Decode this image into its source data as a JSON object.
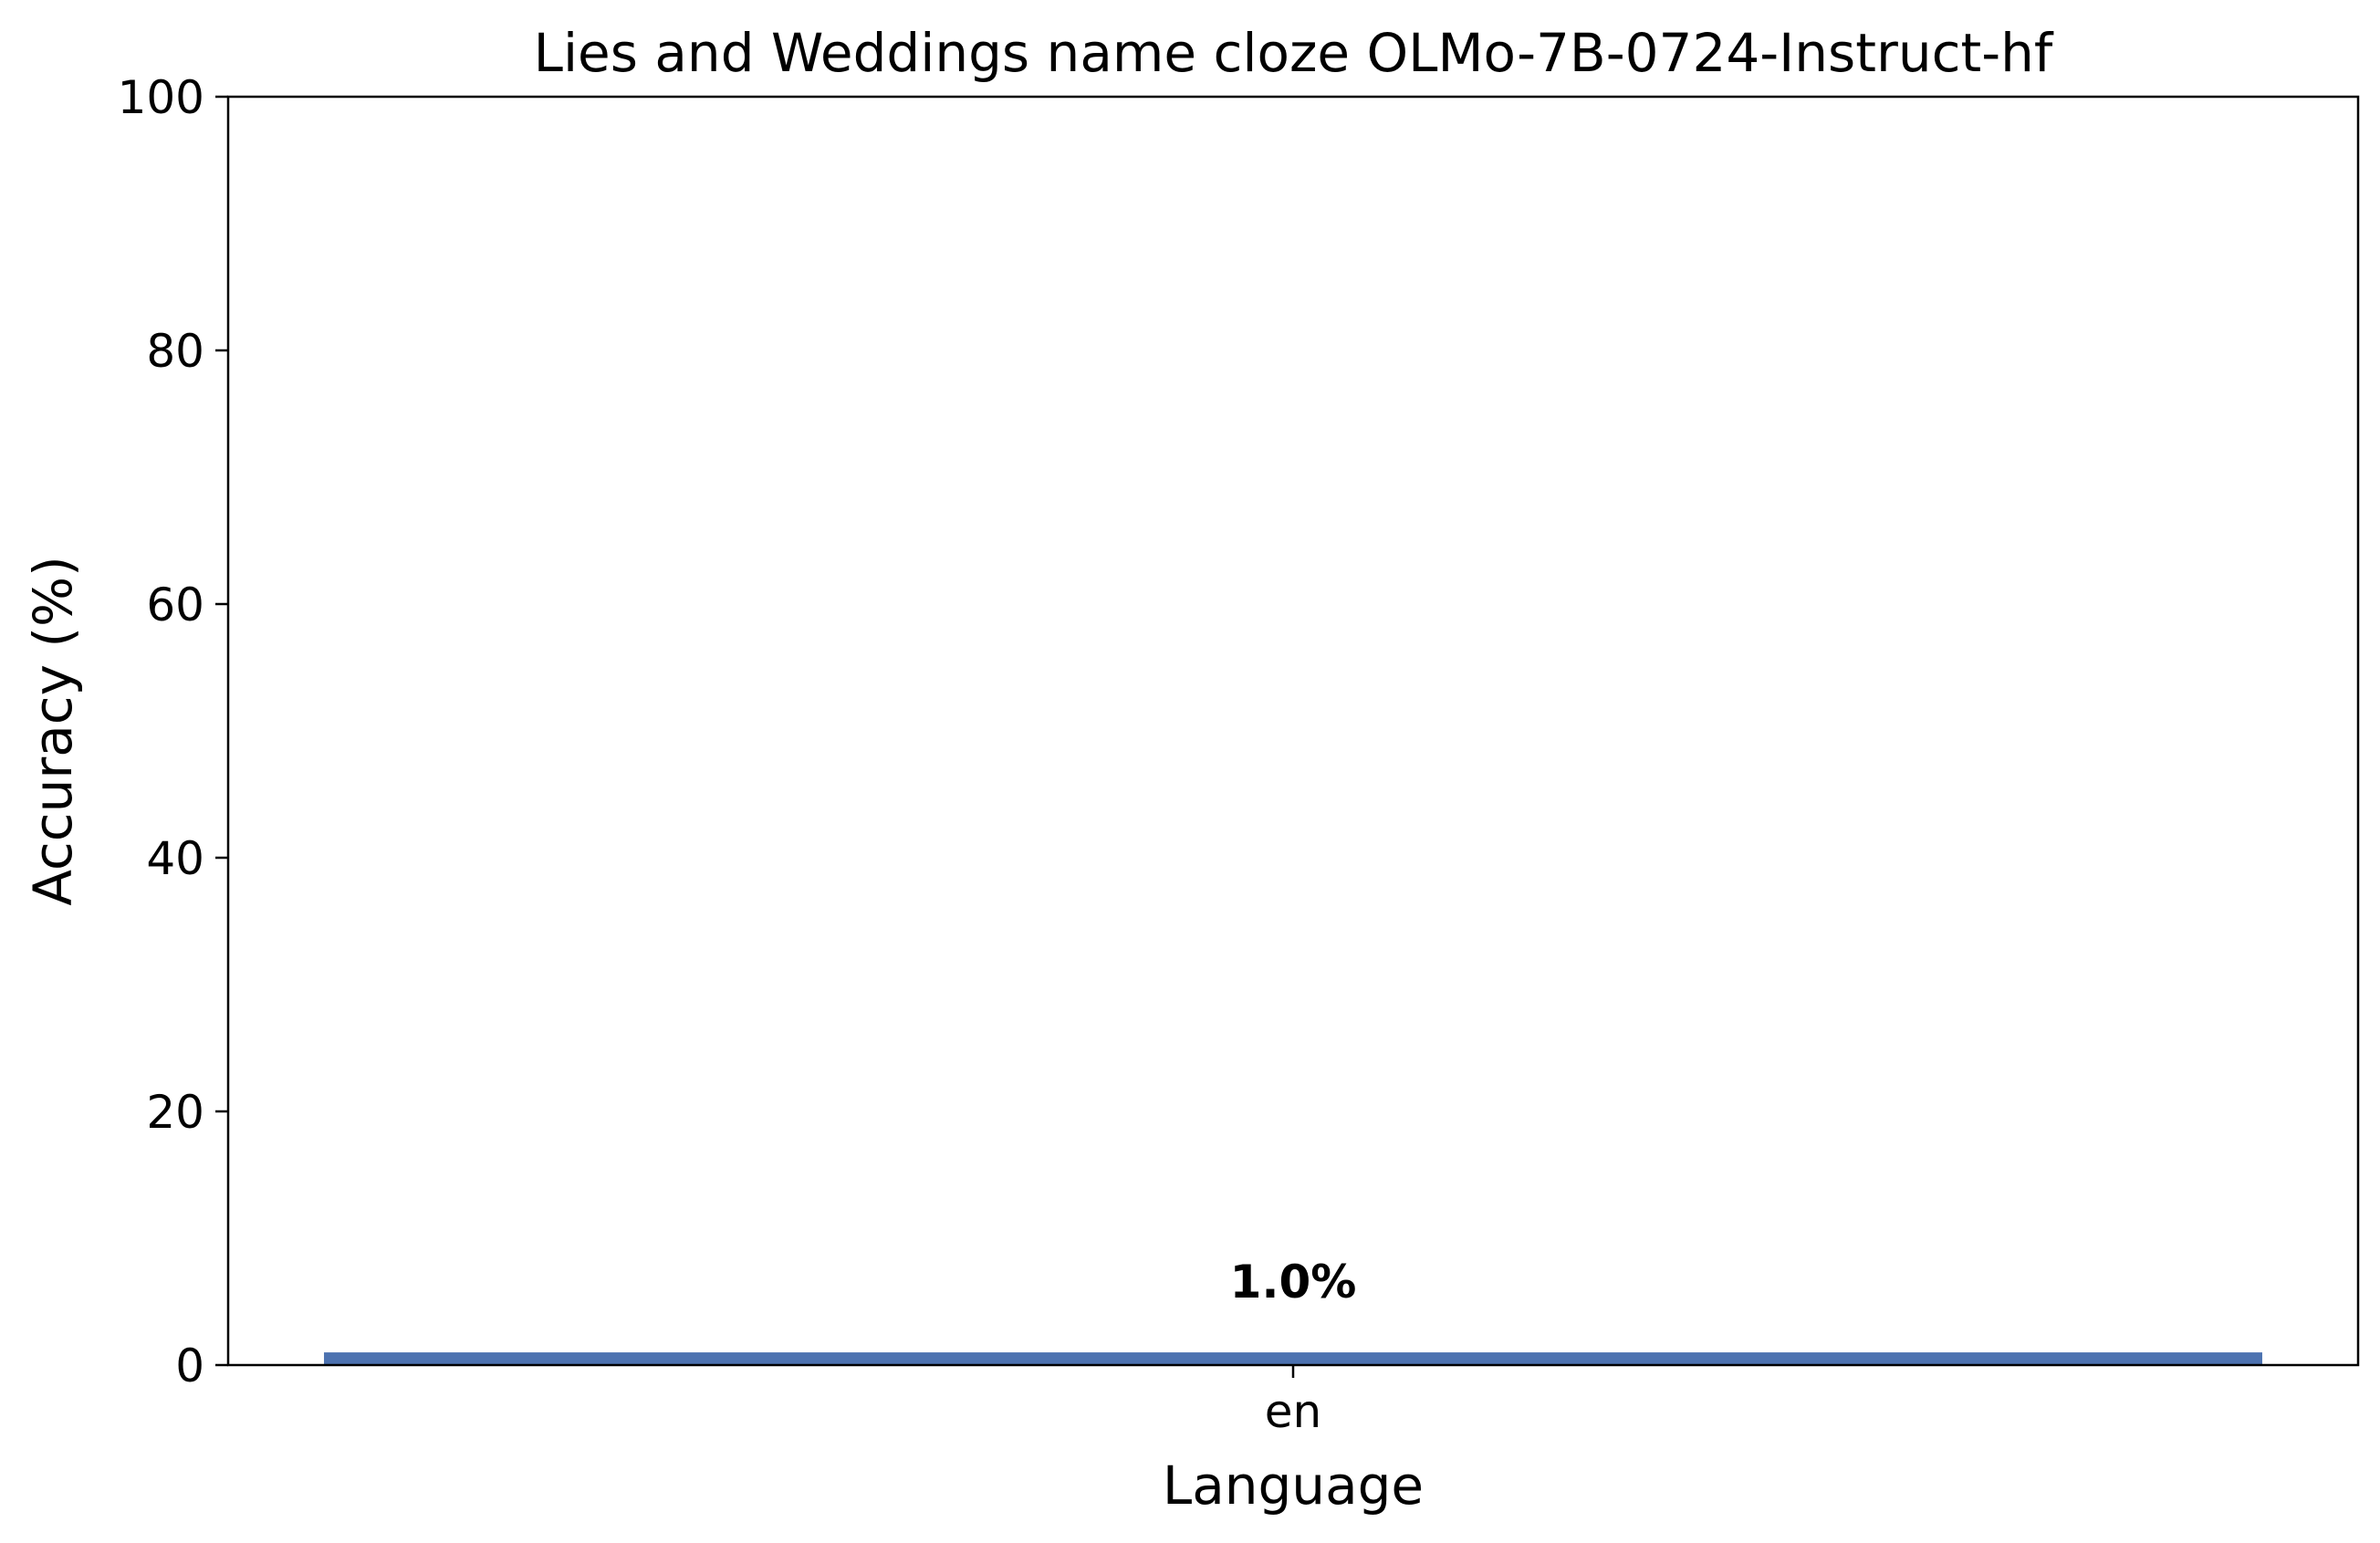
{
  "chart_data": {
    "type": "bar",
    "title": "Lies and Weddings name cloze OLMo-7B-0724-Instruct-hf",
    "xlabel": "Language",
    "ylabel": "Accuracy (%)",
    "categories": [
      "en"
    ],
    "values": [
      1.0
    ],
    "data_labels": [
      "1.0%"
    ],
    "ylim": [
      0,
      100
    ],
    "yticks": [
      0,
      20,
      40,
      60,
      80,
      100
    ],
    "ytick_labels": [
      "0",
      "20",
      "40",
      "60",
      "80",
      "100"
    ],
    "grid": false,
    "legend": "none",
    "bar_color": "#4c72b0"
  }
}
